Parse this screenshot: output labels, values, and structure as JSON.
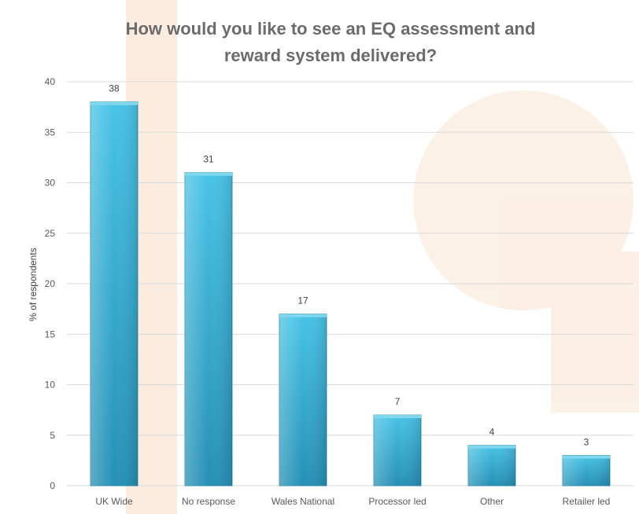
{
  "chart_data": {
    "type": "bar",
    "title_lines": [
      "How would you like to see an EQ assessment and",
      "reward system delivered?"
    ],
    "xlabel": "",
    "ylabel": "% of respondents",
    "categories": [
      "UK Wide",
      "No response",
      "Wales National",
      "Processor led",
      "Other",
      "Retailer led"
    ],
    "values": [
      38,
      31,
      17,
      7,
      4,
      3
    ],
    "data_labels": [
      "38",
      "31",
      "17",
      "7",
      "4",
      "3"
    ],
    "ylim": [
      0,
      40
    ],
    "yticks": [
      "0",
      "5",
      "10",
      "15",
      "20",
      "25",
      "30",
      "35",
      "40"
    ],
    "grid": true,
    "legend": "none",
    "bar_color": "#3cb5d8",
    "bar_color_dark": "#1f8fb3",
    "watermark_color": "#f8dcc3"
  }
}
